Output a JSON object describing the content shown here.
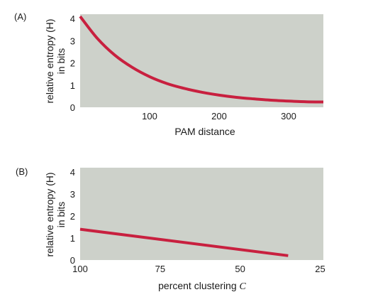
{
  "colors": {
    "plot_bg": "#cdd1ca",
    "curve": "#c8203f",
    "text": "#1a1a1a"
  },
  "chart_data": [
    {
      "panel": "(A)",
      "type": "line",
      "xlabel": "PAM distance",
      "ylabel": [
        "relative entropy (H)",
        "in bits"
      ],
      "xlim": [
        0,
        350
      ],
      "ylim": [
        0,
        4.2
      ],
      "xticks": [
        100,
        200,
        300
      ],
      "yticks": [
        0,
        1,
        2,
        3,
        4
      ],
      "grid": false,
      "series": [
        {
          "x": [
            0,
            25,
            50,
            75,
            100,
            125,
            150,
            175,
            200,
            225,
            250,
            275,
            300,
            325,
            350
          ],
          "y": [
            4.1,
            3.1,
            2.35,
            1.8,
            1.38,
            1.07,
            0.85,
            0.68,
            0.55,
            0.45,
            0.38,
            0.32,
            0.28,
            0.25,
            0.24
          ]
        }
      ]
    },
    {
      "panel": "(B)",
      "type": "line",
      "xlabel": "percent clustering ",
      "xlabel_var": "C",
      "ylabel": [
        "relative entropy (H)",
        "in bits"
      ],
      "xlim": [
        100,
        24
      ],
      "ylim": [
        0,
        4.2
      ],
      "xticks": [
        100,
        75,
        50,
        25
      ],
      "yticks": [
        0,
        1,
        2,
        3,
        4
      ],
      "grid": false,
      "series": [
        {
          "x": [
            100,
            35
          ],
          "y": [
            1.4,
            0.2
          ]
        }
      ]
    }
  ]
}
